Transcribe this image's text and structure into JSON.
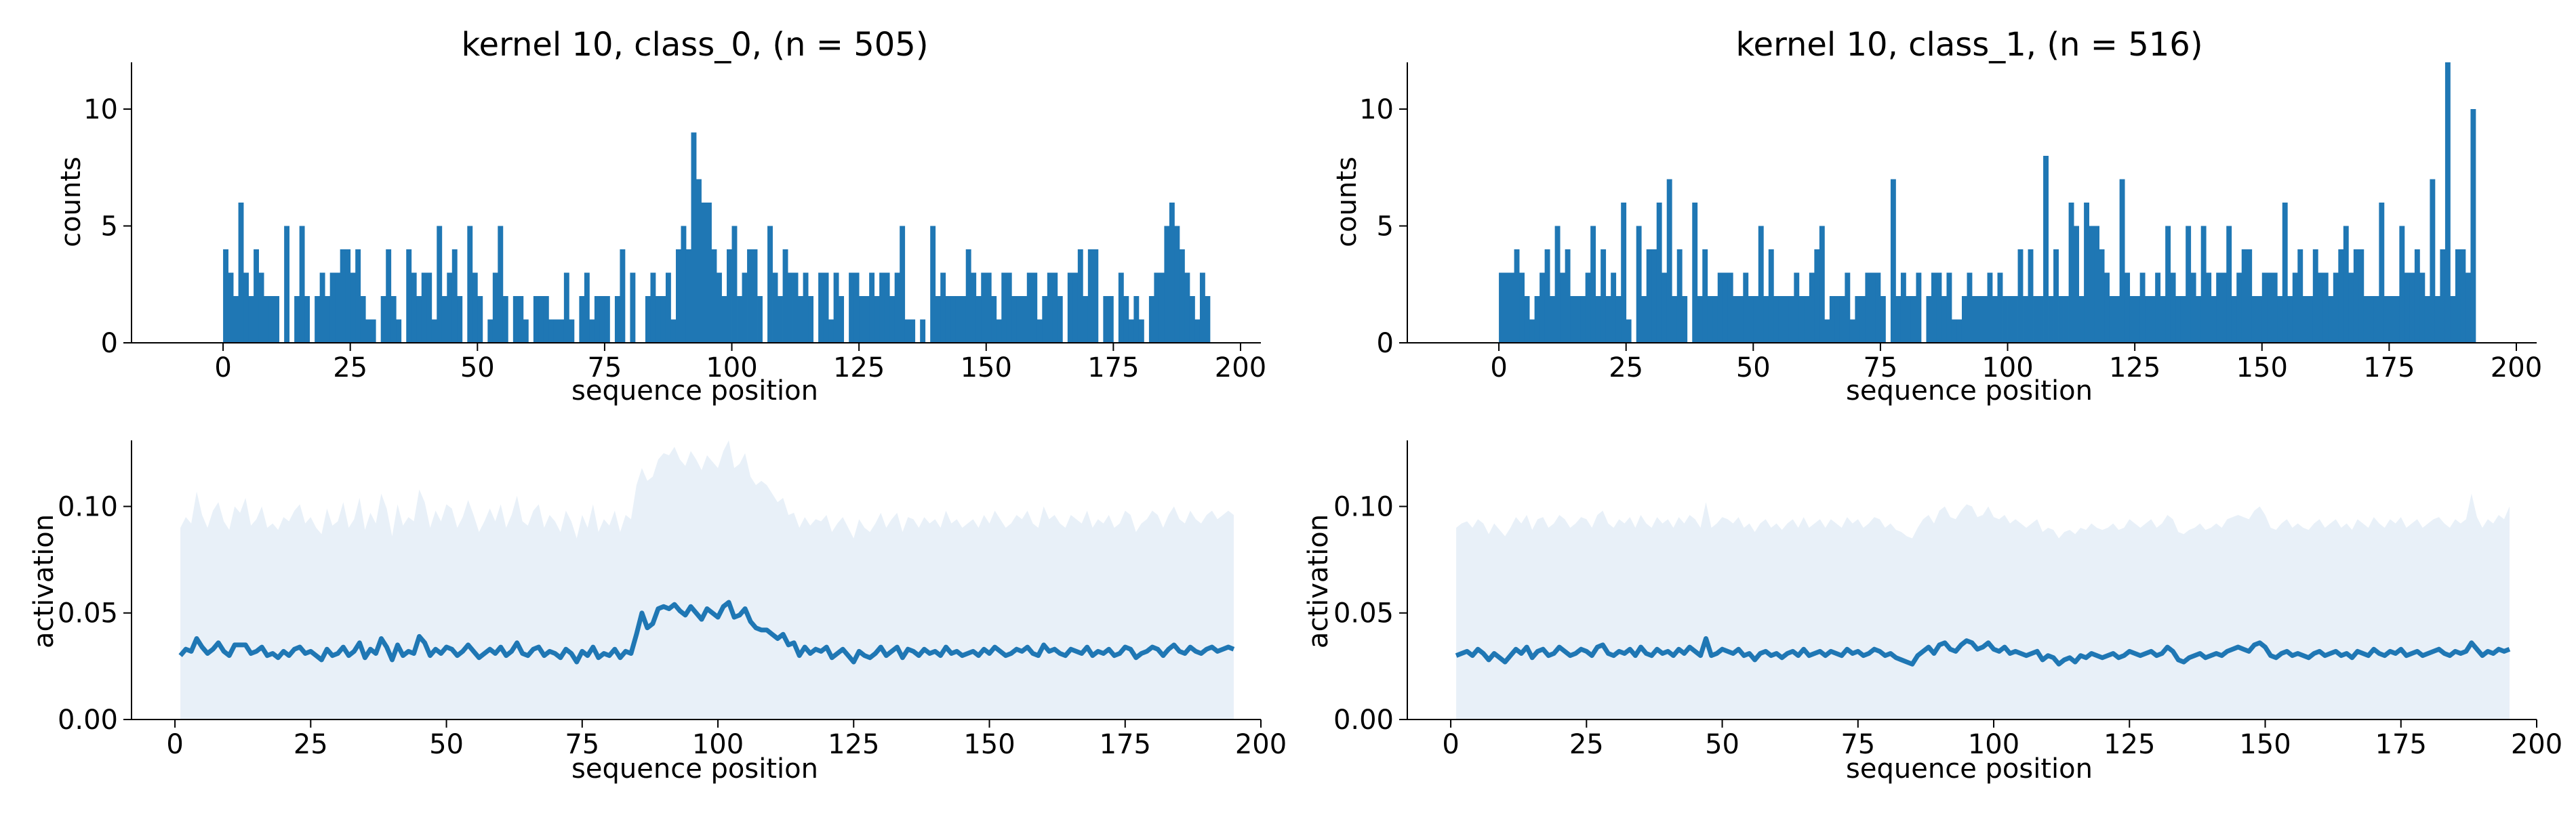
{
  "colors": {
    "bar": "#1f77b4",
    "line": "#1f77b4",
    "band": "#e8f0f8",
    "axis": "#000000"
  },
  "chart_data": [
    {
      "type": "bar",
      "title": "kernel 10, class_0, (n = 505)",
      "xlabel": "sequence position",
      "ylabel": "counts",
      "xlim": [
        -18,
        204
      ],
      "ylim": [
        0,
        12
      ],
      "xticks": [
        0,
        25,
        50,
        75,
        100,
        125,
        150,
        175,
        200
      ],
      "yticks": [
        0,
        5,
        10
      ],
      "grid": false,
      "x_start": 0,
      "values": [
        4,
        3,
        2,
        6,
        3,
        2,
        4,
        3,
        2,
        2,
        2,
        0,
        5,
        0,
        2,
        5,
        2,
        0,
        2,
        3,
        2,
        3,
        3,
        4,
        4,
        3,
        4,
        2,
        1,
        1,
        0,
        2,
        4,
        2,
        1,
        0,
        4,
        3,
        2,
        3,
        3,
        1,
        5,
        2,
        3,
        4,
        2,
        0,
        5,
        3,
        2,
        0,
        1,
        3,
        5,
        2,
        0,
        2,
        2,
        1,
        0,
        2,
        2,
        2,
        1,
        1,
        1,
        3,
        1,
        0,
        2,
        3,
        1,
        2,
        2,
        2,
        0,
        2,
        4,
        0,
        3,
        0,
        0,
        2,
        3,
        2,
        2,
        3,
        1,
        4,
        5,
        4,
        9,
        7,
        6,
        6,
        4,
        3,
        2,
        4,
        5,
        2,
        3,
        4,
        4,
        2,
        0,
        5,
        3,
        2,
        4,
        3,
        3,
        2,
        3,
        2,
        0,
        3,
        3,
        1,
        3,
        2,
        0,
        3,
        3,
        2,
        2,
        3,
        2,
        3,
        3,
        2,
        3,
        5,
        1,
        1,
        0,
        1,
        0,
        5,
        2,
        3,
        2,
        2,
        2,
        2,
        4,
        3,
        2,
        3,
        3,
        2,
        1,
        3,
        3,
        2,
        2,
        2,
        3,
        3,
        1,
        2,
        3,
        3,
        2,
        0,
        3,
        3,
        4,
        2,
        4,
        4,
        0,
        2,
        2,
        0,
        3,
        2,
        1,
        2,
        1,
        0,
        2,
        3,
        3,
        5,
        6,
        5,
        4,
        3,
        2,
        1,
        3,
        2
      ]
    },
    {
      "type": "bar",
      "title": "kernel 10, class_1, (n = 516)",
      "xlabel": "sequence position",
      "ylabel": "counts",
      "xlim": [
        -18,
        204
      ],
      "ylim": [
        0,
        12
      ],
      "xticks": [
        0,
        25,
        50,
        75,
        100,
        125,
        150,
        175,
        200
      ],
      "yticks": [
        0,
        5,
        10
      ],
      "grid": false,
      "x_start": 0,
      "values": [
        3,
        3,
        3,
        4,
        3,
        2,
        1,
        2,
        3,
        4,
        2,
        5,
        3,
        4,
        2,
        2,
        2,
        3,
        5,
        2,
        4,
        2,
        3,
        2,
        6,
        1,
        0,
        5,
        2,
        4,
        4,
        6,
        3,
        7,
        2,
        4,
        2,
        0,
        6,
        2,
        4,
        2,
        2,
        3,
        3,
        3,
        2,
        2,
        3,
        2,
        2,
        5,
        2,
        4,
        2,
        2,
        2,
        2,
        3,
        2,
        2,
        3,
        4,
        5,
        1,
        2,
        2,
        2,
        3,
        1,
        2,
        2,
        3,
        3,
        3,
        2,
        0,
        7,
        2,
        3,
        2,
        2,
        3,
        0,
        2,
        3,
        3,
        2,
        3,
        1,
        1,
        2,
        3,
        2,
        2,
        2,
        3,
        2,
        3,
        2,
        2,
        2,
        4,
        2,
        4,
        2,
        2,
        8,
        2,
        4,
        2,
        2,
        6,
        5,
        2,
        6,
        5,
        5,
        4,
        3,
        2,
        2,
        7,
        3,
        2,
        2,
        3,
        2,
        2,
        3,
        2,
        5,
        3,
        2,
        2,
        5,
        3,
        2,
        5,
        3,
        2,
        3,
        3,
        5,
        2,
        3,
        4,
        4,
        2,
        2,
        3,
        3,
        3,
        2,
        6,
        2,
        3,
        4,
        2,
        2,
        4,
        3,
        3,
        2,
        3,
        4,
        5,
        3,
        4,
        4,
        2,
        2,
        2,
        6,
        2,
        2,
        2,
        5,
        3,
        3,
        4,
        3,
        2,
        7,
        2,
        4,
        12,
        2,
        4,
        4,
        3,
        10
      ]
    },
    {
      "type": "area",
      "xlabel": "sequence position",
      "ylabel": "activation",
      "xlim": [
        -8,
        200
      ],
      "ylim": [
        0,
        0.131
      ],
      "xticks": [
        0,
        25,
        50,
        75,
        100,
        125,
        150,
        175,
        200
      ],
      "yticks": [
        0.0,
        0.05,
        0.1
      ],
      "ytick_labels": [
        "0.00",
        "0.05",
        "0.10"
      ],
      "grid": false,
      "x_start": 1,
      "mean": [
        0.03,
        0.033,
        0.032,
        0.038,
        0.034,
        0.031,
        0.033,
        0.036,
        0.032,
        0.03,
        0.035,
        0.035,
        0.035,
        0.031,
        0.032,
        0.034,
        0.03,
        0.031,
        0.029,
        0.032,
        0.03,
        0.033,
        0.034,
        0.031,
        0.032,
        0.03,
        0.028,
        0.033,
        0.03,
        0.031,
        0.034,
        0.03,
        0.032,
        0.036,
        0.029,
        0.033,
        0.031,
        0.038,
        0.034,
        0.028,
        0.035,
        0.03,
        0.032,
        0.031,
        0.039,
        0.036,
        0.03,
        0.033,
        0.031,
        0.034,
        0.033,
        0.03,
        0.032,
        0.035,
        0.032,
        0.029,
        0.031,
        0.033,
        0.031,
        0.034,
        0.03,
        0.032,
        0.036,
        0.031,
        0.03,
        0.033,
        0.034,
        0.03,
        0.032,
        0.031,
        0.029,
        0.033,
        0.031,
        0.027,
        0.032,
        0.03,
        0.034,
        0.029,
        0.031,
        0.03,
        0.033,
        0.029,
        0.032,
        0.031,
        0.04,
        0.05,
        0.043,
        0.045,
        0.052,
        0.053,
        0.052,
        0.054,
        0.051,
        0.049,
        0.053,
        0.05,
        0.047,
        0.052,
        0.05,
        0.048,
        0.053,
        0.055,
        0.048,
        0.049,
        0.052,
        0.046,
        0.043,
        0.042,
        0.042,
        0.04,
        0.038,
        0.04,
        0.035,
        0.036,
        0.03,
        0.034,
        0.031,
        0.033,
        0.032,
        0.034,
        0.029,
        0.031,
        0.033,
        0.03,
        0.027,
        0.032,
        0.03,
        0.029,
        0.031,
        0.034,
        0.03,
        0.032,
        0.034,
        0.029,
        0.033,
        0.032,
        0.03,
        0.033,
        0.031,
        0.032,
        0.03,
        0.034,
        0.031,
        0.032,
        0.03,
        0.031,
        0.032,
        0.03,
        0.033,
        0.031,
        0.034,
        0.032,
        0.03,
        0.031,
        0.033,
        0.032,
        0.034,
        0.031,
        0.03,
        0.035,
        0.032,
        0.033,
        0.031,
        0.03,
        0.033,
        0.032,
        0.031,
        0.034,
        0.03,
        0.032,
        0.031,
        0.033,
        0.03,
        0.031,
        0.034,
        0.033,
        0.029,
        0.031,
        0.032,
        0.034,
        0.033,
        0.03,
        0.033,
        0.035,
        0.032,
        0.031,
        0.034,
        0.032,
        0.031,
        0.033,
        0.034,
        0.032,
        0.033,
        0.034,
        0.033
      ],
      "upper": [
        0.09,
        0.095,
        0.092,
        0.107,
        0.096,
        0.09,
        0.098,
        0.102,
        0.093,
        0.089,
        0.1,
        0.097,
        0.104,
        0.091,
        0.094,
        0.1,
        0.09,
        0.092,
        0.089,
        0.095,
        0.093,
        0.098,
        0.101,
        0.092,
        0.095,
        0.09,
        0.087,
        0.099,
        0.091,
        0.093,
        0.102,
        0.09,
        0.094,
        0.104,
        0.089,
        0.097,
        0.092,
        0.106,
        0.099,
        0.086,
        0.101,
        0.091,
        0.095,
        0.093,
        0.108,
        0.102,
        0.09,
        0.098,
        0.093,
        0.101,
        0.099,
        0.09,
        0.095,
        0.103,
        0.096,
        0.088,
        0.093,
        0.099,
        0.093,
        0.101,
        0.09,
        0.096,
        0.105,
        0.093,
        0.091,
        0.098,
        0.101,
        0.09,
        0.096,
        0.093,
        0.088,
        0.098,
        0.093,
        0.085,
        0.096,
        0.09,
        0.101,
        0.088,
        0.094,
        0.091,
        0.098,
        0.088,
        0.096,
        0.094,
        0.11,
        0.118,
        0.112,
        0.114,
        0.122,
        0.125,
        0.124,
        0.128,
        0.122,
        0.119,
        0.126,
        0.122,
        0.117,
        0.124,
        0.121,
        0.118,
        0.126,
        0.131,
        0.118,
        0.12,
        0.125,
        0.114,
        0.11,
        0.112,
        0.11,
        0.106,
        0.102,
        0.104,
        0.096,
        0.097,
        0.09,
        0.095,
        0.091,
        0.094,
        0.093,
        0.096,
        0.088,
        0.092,
        0.095,
        0.09,
        0.085,
        0.094,
        0.09,
        0.088,
        0.092,
        0.097,
        0.09,
        0.094,
        0.097,
        0.088,
        0.095,
        0.094,
        0.09,
        0.095,
        0.092,
        0.094,
        0.09,
        0.098,
        0.092,
        0.094,
        0.09,
        0.092,
        0.094,
        0.09,
        0.096,
        0.092,
        0.098,
        0.094,
        0.09,
        0.092,
        0.096,
        0.094,
        0.098,
        0.092,
        0.09,
        0.1,
        0.094,
        0.096,
        0.092,
        0.09,
        0.096,
        0.094,
        0.092,
        0.098,
        0.09,
        0.094,
        0.092,
        0.096,
        0.09,
        0.092,
        0.098,
        0.096,
        0.088,
        0.092,
        0.094,
        0.098,
        0.096,
        0.09,
        0.096,
        0.1,
        0.094,
        0.092,
        0.098,
        0.094,
        0.092,
        0.096,
        0.098,
        0.094,
        0.096,
        0.098,
        0.096
      ]
    },
    {
      "type": "area",
      "xlabel": "sequence position",
      "ylabel": "activation",
      "xlim": [
        -8,
        200
      ],
      "ylim": [
        0,
        0.131
      ],
      "xticks": [
        0,
        25,
        50,
        75,
        100,
        125,
        150,
        175,
        200
      ],
      "yticks": [
        0.0,
        0.05,
        0.1
      ],
      "ytick_labels": [
        "0.00",
        "0.05",
        "0.10"
      ],
      "grid": false,
      "x_start": 1,
      "mean": [
        0.03,
        0.031,
        0.032,
        0.03,
        0.033,
        0.031,
        0.028,
        0.031,
        0.029,
        0.027,
        0.03,
        0.033,
        0.031,
        0.034,
        0.029,
        0.032,
        0.033,
        0.03,
        0.031,
        0.034,
        0.032,
        0.03,
        0.031,
        0.033,
        0.032,
        0.03,
        0.034,
        0.035,
        0.031,
        0.03,
        0.032,
        0.031,
        0.033,
        0.03,
        0.034,
        0.031,
        0.03,
        0.033,
        0.031,
        0.032,
        0.03,
        0.033,
        0.031,
        0.034,
        0.032,
        0.03,
        0.038,
        0.03,
        0.031,
        0.033,
        0.032,
        0.031,
        0.033,
        0.03,
        0.031,
        0.028,
        0.031,
        0.032,
        0.03,
        0.031,
        0.029,
        0.031,
        0.032,
        0.03,
        0.033,
        0.03,
        0.031,
        0.032,
        0.03,
        0.032,
        0.031,
        0.03,
        0.033,
        0.031,
        0.032,
        0.03,
        0.031,
        0.033,
        0.032,
        0.03,
        0.031,
        0.029,
        0.028,
        0.027,
        0.026,
        0.03,
        0.032,
        0.034,
        0.031,
        0.035,
        0.036,
        0.033,
        0.032,
        0.035,
        0.037,
        0.036,
        0.033,
        0.034,
        0.036,
        0.033,
        0.032,
        0.034,
        0.031,
        0.032,
        0.031,
        0.03,
        0.031,
        0.032,
        0.028,
        0.03,
        0.029,
        0.026,
        0.028,
        0.029,
        0.027,
        0.03,
        0.029,
        0.031,
        0.03,
        0.029,
        0.03,
        0.031,
        0.029,
        0.03,
        0.032,
        0.031,
        0.03,
        0.031,
        0.032,
        0.03,
        0.031,
        0.034,
        0.032,
        0.028,
        0.027,
        0.029,
        0.03,
        0.031,
        0.029,
        0.03,
        0.031,
        0.03,
        0.032,
        0.033,
        0.034,
        0.033,
        0.032,
        0.035,
        0.036,
        0.034,
        0.03,
        0.029,
        0.031,
        0.032,
        0.03,
        0.031,
        0.03,
        0.029,
        0.031,
        0.032,
        0.03,
        0.031,
        0.032,
        0.03,
        0.031,
        0.029,
        0.032,
        0.031,
        0.03,
        0.033,
        0.031,
        0.03,
        0.032,
        0.031,
        0.033,
        0.03,
        0.031,
        0.032,
        0.03,
        0.031,
        0.032,
        0.033,
        0.031,
        0.03,
        0.032,
        0.031,
        0.032,
        0.036,
        0.033,
        0.03,
        0.032,
        0.031,
        0.033,
        0.032,
        0.033
      ],
      "upper": [
        0.09,
        0.092,
        0.093,
        0.09,
        0.094,
        0.092,
        0.087,
        0.092,
        0.089,
        0.086,
        0.09,
        0.095,
        0.092,
        0.096,
        0.089,
        0.094,
        0.095,
        0.09,
        0.092,
        0.096,
        0.094,
        0.09,
        0.092,
        0.095,
        0.094,
        0.09,
        0.096,
        0.098,
        0.092,
        0.09,
        0.094,
        0.092,
        0.095,
        0.09,
        0.096,
        0.092,
        0.09,
        0.095,
        0.092,
        0.094,
        0.09,
        0.095,
        0.092,
        0.096,
        0.094,
        0.09,
        0.102,
        0.09,
        0.092,
        0.095,
        0.094,
        0.092,
        0.095,
        0.09,
        0.092,
        0.088,
        0.092,
        0.094,
        0.09,
        0.092,
        0.089,
        0.092,
        0.094,
        0.09,
        0.095,
        0.09,
        0.092,
        0.094,
        0.09,
        0.094,
        0.092,
        0.09,
        0.095,
        0.092,
        0.094,
        0.09,
        0.092,
        0.095,
        0.094,
        0.09,
        0.092,
        0.089,
        0.088,
        0.086,
        0.085,
        0.09,
        0.094,
        0.096,
        0.092,
        0.098,
        0.1,
        0.095,
        0.094,
        0.098,
        0.101,
        0.1,
        0.095,
        0.096,
        0.1,
        0.095,
        0.094,
        0.096,
        0.092,
        0.094,
        0.092,
        0.09,
        0.092,
        0.094,
        0.088,
        0.09,
        0.089,
        0.085,
        0.088,
        0.089,
        0.087,
        0.09,
        0.089,
        0.092,
        0.09,
        0.089,
        0.09,
        0.092,
        0.089,
        0.09,
        0.094,
        0.092,
        0.09,
        0.092,
        0.094,
        0.09,
        0.092,
        0.096,
        0.094,
        0.088,
        0.087,
        0.089,
        0.09,
        0.092,
        0.089,
        0.09,
        0.092,
        0.09,
        0.094,
        0.095,
        0.096,
        0.095,
        0.094,
        0.098,
        0.1,
        0.096,
        0.09,
        0.089,
        0.092,
        0.094,
        0.09,
        0.092,
        0.09,
        0.089,
        0.092,
        0.094,
        0.09,
        0.092,
        0.094,
        0.09,
        0.092,
        0.089,
        0.094,
        0.092,
        0.09,
        0.095,
        0.092,
        0.09,
        0.094,
        0.092,
        0.095,
        0.09,
        0.092,
        0.094,
        0.09,
        0.092,
        0.094,
        0.095,
        0.092,
        0.09,
        0.094,
        0.092,
        0.094,
        0.106,
        0.095,
        0.09,
        0.094,
        0.092,
        0.096,
        0.094,
        0.1
      ]
    }
  ]
}
